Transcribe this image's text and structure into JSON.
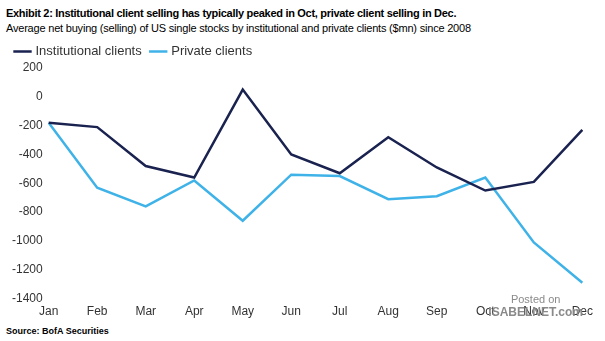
{
  "chart_data": {
    "type": "line",
    "title": "Exhibit 2: Institutional client selling has typically peaked in Oct, private client selling in Dec.",
    "subtitle": "Average net buying (selling) of US single stocks by institutional and private clients ($mn) since 2008",
    "source": "Source: BofA Securities",
    "annotations": [
      "Posted on",
      "ISABELNET.com"
    ],
    "categories": [
      "Jan",
      "Feb",
      "Mar",
      "Apr",
      "May",
      "Jun",
      "Jul",
      "Aug",
      "Sep",
      "Oct",
      "Nov",
      "Dec"
    ],
    "series": [
      {
        "name": "Institutional clients",
        "color": "#1a2250",
        "values": [
          -180,
          -210,
          -480,
          -560,
          50,
          -400,
          -530,
          -280,
          -490,
          -650,
          -590,
          -230
        ]
      },
      {
        "name": "Private clients",
        "color": "#3fb2e8",
        "values": [
          -180,
          -630,
          -760,
          -580,
          -860,
          -540,
          -550,
          -710,
          -690,
          -560,
          -1010,
          -1290
        ]
      }
    ],
    "ylim": [
      -1400,
      200
    ],
    "yticks": [
      -1400,
      -1200,
      -1000,
      -800,
      -600,
      -400,
      -200,
      0,
      200
    ],
    "grid": false,
    "legend": "top"
  }
}
